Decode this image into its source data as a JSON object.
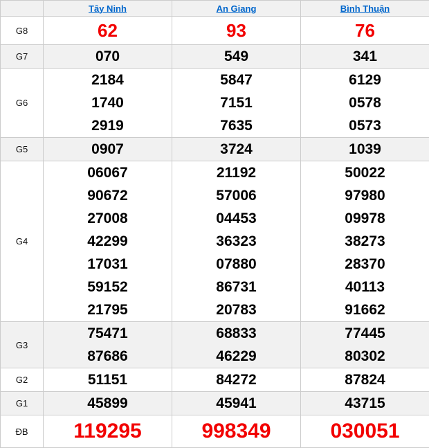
{
  "colors": {
    "accent_red": "#f20000",
    "link_blue": "#0066cc",
    "stripe_bg": "#f1f1f1",
    "border": "#cccccc",
    "text": "#000000"
  },
  "table": {
    "corner_label": "",
    "columns": [
      "Tây Ninh",
      "An Giang",
      "Bình Thuận"
    ],
    "rows": [
      {
        "label": "G8",
        "style": "red-big",
        "values": [
          [
            "62"
          ],
          [
            "93"
          ],
          [
            "76"
          ]
        ]
      },
      {
        "label": "G7",
        "style": "normal",
        "values": [
          [
            "070"
          ],
          [
            "549"
          ],
          [
            "341"
          ]
        ]
      },
      {
        "label": "G6",
        "style": "normal",
        "values": [
          [
            "2184",
            "1740",
            "2919"
          ],
          [
            "5847",
            "7151",
            "7635"
          ],
          [
            "6129",
            "0578",
            "0573"
          ]
        ]
      },
      {
        "label": "G5",
        "style": "normal",
        "values": [
          [
            "0907"
          ],
          [
            "3724"
          ],
          [
            "1039"
          ]
        ]
      },
      {
        "label": "G4",
        "style": "normal",
        "values": [
          [
            "06067",
            "90672",
            "27008",
            "42299",
            "17031",
            "59152",
            "21795"
          ],
          [
            "21192",
            "57006",
            "04453",
            "36323",
            "07880",
            "86731",
            "20783"
          ],
          [
            "50022",
            "97980",
            "09978",
            "38273",
            "28370",
            "40113",
            "91662"
          ]
        ]
      },
      {
        "label": "G3",
        "style": "normal",
        "values": [
          [
            "75471",
            "87686"
          ],
          [
            "68833",
            "46229"
          ],
          [
            "77445",
            "80302"
          ]
        ]
      },
      {
        "label": "G2",
        "style": "normal",
        "values": [
          [
            "51151"
          ],
          [
            "84272"
          ],
          [
            "87824"
          ]
        ]
      },
      {
        "label": "G1",
        "style": "normal",
        "values": [
          [
            "45899"
          ],
          [
            "45941"
          ],
          [
            "43715"
          ]
        ]
      },
      {
        "label": "ĐB",
        "style": "red-jackpot",
        "values": [
          [
            "119295"
          ],
          [
            "998349"
          ],
          [
            "030051"
          ]
        ]
      }
    ]
  }
}
